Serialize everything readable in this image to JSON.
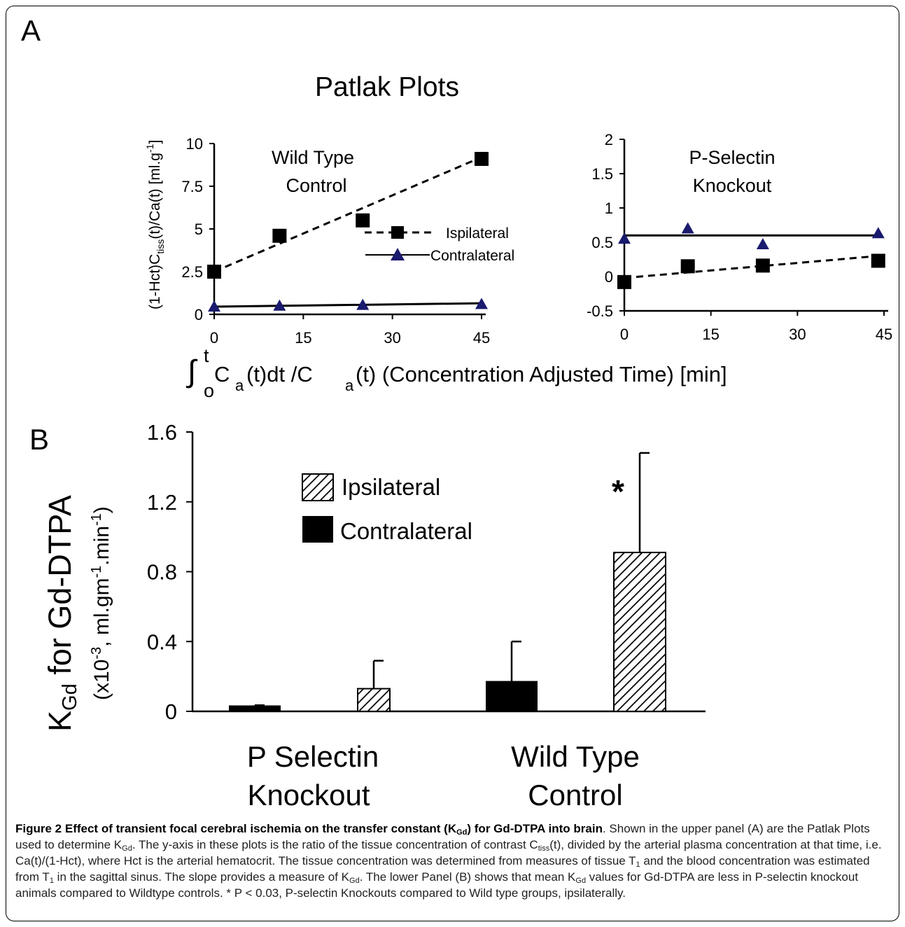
{
  "panel_a_letter": "A",
  "panel_b_letter": "B",
  "patlak_title": "Patlak Plots",
  "chart_data": [
    {
      "type": "scatter",
      "panel": "A-left",
      "title": "Wild Type Control",
      "title_lines": [
        "Wild Type",
        "Control"
      ],
      "ylabel": "(1-Hct)C_tiss(t)/Ca(t) [ml.g^-1]",
      "xlabel": "∫ C_a(t)dt /C_a(t) (Concentration Adjusted Time) [min]",
      "xlim": [
        0,
        45
      ],
      "ylim": [
        0,
        10
      ],
      "x_ticks": [
        "0",
        "15",
        "30",
        "45"
      ],
      "y_ticks": [
        "0",
        "2.5",
        "5",
        "7.5",
        "10"
      ],
      "legend_position": "right",
      "series": [
        {
          "name": "Ispilateral",
          "marker": "square",
          "line": "dashed",
          "color": "#000000",
          "x": [
            0,
            11,
            25,
            45
          ],
          "y": [
            2.5,
            4.6,
            5.5,
            9.1
          ],
          "fit": {
            "x": [
              0,
              45
            ],
            "y": [
              2.5,
              9.2
            ]
          }
        },
        {
          "name": "Contralateral",
          "marker": "triangle",
          "line": "solid",
          "color": "#1a1a6e",
          "x": [
            0,
            11,
            25,
            45
          ],
          "y": [
            0.45,
            0.5,
            0.55,
            0.6
          ],
          "fit": {
            "x": [
              0,
              45
            ],
            "y": [
              0.45,
              0.65
            ]
          }
        }
      ]
    },
    {
      "type": "scatter",
      "panel": "A-right",
      "title": "P-Selectin Knockout",
      "title_lines": [
        "P-Selectin",
        "Knockout"
      ],
      "xlim": [
        0,
        45
      ],
      "ylim": [
        -0.5,
        2
      ],
      "x_ticks": [
        "0",
        "15",
        "30",
        "45"
      ],
      "y_ticks": [
        "-0.5",
        "0",
        "0.5",
        "1",
        "1.5",
        "2"
      ],
      "series": [
        {
          "marker": "square",
          "line": "dashed",
          "color": "#000000",
          "x": [
            0,
            11,
            24,
            44
          ],
          "y": [
            -0.08,
            0.15,
            0.16,
            0.23
          ],
          "fit": {
            "x": [
              0,
              44
            ],
            "y": [
              -0.02,
              0.3
            ]
          }
        },
        {
          "marker": "triangle",
          "line": "solid",
          "color": "#1a1a6e",
          "x": [
            0,
            11,
            24,
            44
          ],
          "y": [
            0.55,
            0.7,
            0.47,
            0.63
          ],
          "fit": {
            "x": [
              0,
              44
            ],
            "y": [
              0.6,
              0.6
            ]
          }
        }
      ]
    },
    {
      "type": "bar",
      "panel": "B",
      "ylabel_main": "K",
      "ylabel_sub": "Gd",
      "ylabel_rest": " for Gd-DTPA",
      "ylabel_units": "(x10-3, ml.gm-1.min-1)",
      "ylim": [
        0,
        1.6
      ],
      "y_ticks": [
        "0",
        "0.4",
        "0.8",
        "1.2",
        "1.6"
      ],
      "categories": [
        "P Selectin Knockout",
        "Wild Type Control"
      ],
      "category_lines": [
        [
          "P Selectin",
          "Knockout"
        ],
        [
          "Wild Type",
          "Control"
        ]
      ],
      "legend_position": "top-left",
      "series": [
        {
          "name": "Contralateral",
          "fill": "solid",
          "color": "#000000",
          "values": [
            0.03,
            0.17
          ],
          "error": [
            0.005,
            0.23
          ]
        },
        {
          "name": "Ipsilateral",
          "fill": "hatched",
          "color": "#000000",
          "values": [
            0.13,
            0.91
          ],
          "error": [
            0.16,
            0.57
          ]
        }
      ],
      "annotation": "*"
    }
  ],
  "caption": {
    "figure_label": "Figure 2",
    "title": "Effect of transient focal cerebral ischemia on the transfer constant (K",
    "title_sub": "Gd",
    "title_end": ") for Gd-DTPA into brain",
    "body_1": ". Shown in the upper panel (A) are the Patlak Plots used to determine K",
    "body_1_sub": "Gd",
    "body_2": ". The y-axis in these plots is the ratio of the tissue concentration of contrast C",
    "body_2_sub": "tiss",
    "body_3": "(t), divided by the arterial plasma concentration at that time, i.e. Ca(t)/(1-Hct), where Hct is the arterial hematocrit. The tissue concentration was determined from measures of tissue T",
    "body_3_sub": "1",
    "body_4": " and the blood concentration was estimated from T",
    "body_4_sub": "1",
    "body_5": " in the sagittal sinus. The slope provides a measure of K",
    "body_5_sub": "Gd",
    "body_6": ". The lower Panel (B) shows that mean K",
    "body_6_sub": "Gd",
    "body_7": " values for Gd-DTPA are less in P-selectin knockout animals compared to Wildtype controls. * P < 0.03, P-selectin Knockouts compared to Wild type groups, ipsilaterally."
  }
}
